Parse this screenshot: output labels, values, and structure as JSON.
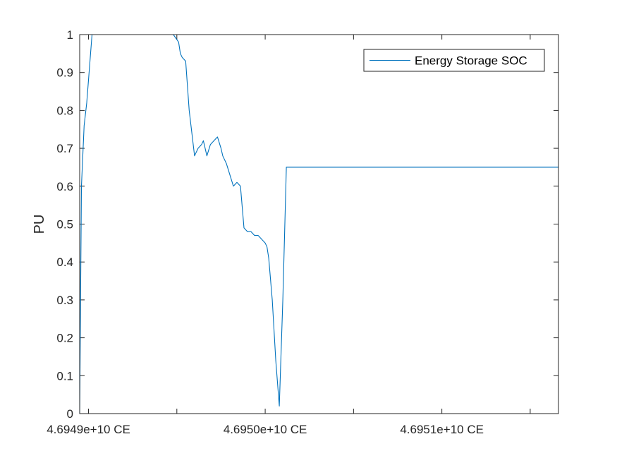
{
  "chart_data": {
    "type": "line",
    "title": "",
    "xlabel": "",
    "ylabel": "PU",
    "ylim": [
      0,
      1
    ],
    "xlim": [
      46948950000.0,
      46951660000.0
    ],
    "y_ticks": [
      0,
      0.1,
      0.2,
      0.3,
      0.4,
      0.5,
      0.6,
      0.7,
      0.8,
      0.9,
      1
    ],
    "y_tick_labels": [
      "0",
      "0.1",
      "0.2",
      "0.3",
      "0.4",
      "0.5",
      "0.6",
      "0.7",
      "0.8",
      "0.9",
      "1"
    ],
    "x_ticks": [
      46949000000.0,
      46949500000.0,
      46950000000.0,
      46950500000.0,
      46951000000.0,
      46951500000.0
    ],
    "x_tick_labels": [
      "4.6949e+10 CE",
      "",
      "4.6950e+10 CE",
      "",
      "4.6951e+10 CE",
      ""
    ],
    "grid": false,
    "legend_position": "top-right",
    "colors": {
      "series": "#0072bd",
      "axes": "#262626",
      "background": "#ffffff"
    },
    "series": [
      {
        "name": "Energy Storage SOC",
        "x": [
          46948950000.0,
          46948960000.0,
          46948975000.0,
          46948990000.0,
          46949020000.0,
          46949050000.0,
          46949480000.0,
          46949510000.0,
          46949520000.0,
          46949530000.0,
          46949550000.0,
          46949570000.0,
          46949600000.0,
          46949620000.0,
          46949640000.0,
          46949650000.0,
          46949670000.0,
          46949690000.0,
          46949710000.0,
          46949730000.0,
          46949750000.0,
          46949760000.0,
          46949780000.0,
          46949800000.0,
          46949820000.0,
          46949840000.0,
          46949860000.0,
          46949880000.0,
          46949900000.0,
          46949920000.0,
          46949940000.0,
          46949960000.0,
          46949980000.0,
          46950000000.0,
          46950010000.0,
          46950020000.0,
          46950040000.0,
          46950060000.0,
          46950080000.0,
          46950100000.0,
          46950120000.0,
          46950140000.0,
          46950170000.0,
          46950200000.0,
          46950230000.0,
          46950250000.0,
          46950260000.0,
          46950280000.0,
          46950290000.0,
          46950300000.0,
          46950310000.0,
          46950330000.0,
          46950350000.0,
          46950370000.0,
          46950390000.0,
          46950420000.0,
          46950460000.0,
          46950470000.0,
          46951660000.0
        ],
        "y": [
          0.0,
          0.6,
          0.76,
          0.82,
          1.0,
          1.0,
          1.0,
          0.98,
          0.95,
          0.94,
          0.93,
          0.8,
          0.68,
          0.7,
          0.71,
          0.72,
          0.68,
          0.71,
          0.72,
          0.73,
          0.7,
          0.68,
          0.66,
          0.63,
          0.6,
          0.61,
          0.6,
          0.49,
          0.48,
          0.48,
          0.47,
          0.47,
          0.46,
          0.45,
          0.44,
          0.41,
          0.3,
          0.14,
          0.02,
          0.3,
          0.65,
          0.65,
          0.65,
          0.65,
          0.65,
          0.65,
          0.65,
          0.65,
          0.65,
          0.65,
          0.65,
          0.65,
          0.65,
          0.65,
          0.65,
          0.65,
          0.65,
          0.65,
          0.65
        ]
      }
    ]
  }
}
